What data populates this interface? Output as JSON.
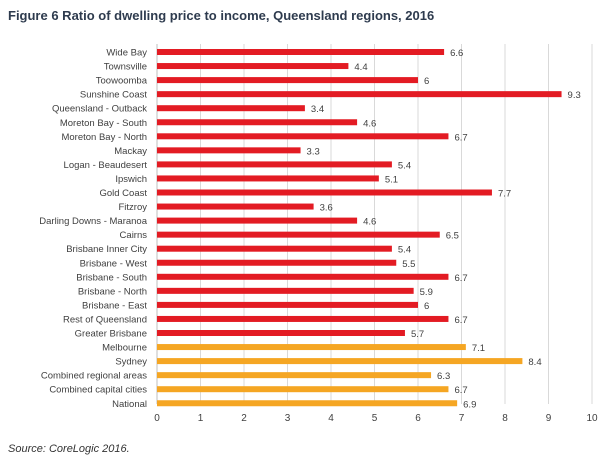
{
  "title": "Figure 6 Ratio of dwelling price to income, Queensland regions, 2016",
  "source": "Source: CoreLogic 2016.",
  "colors": {
    "queensland": "#e31b23",
    "comparison": "#f5a623",
    "grid": "#d9d9d9",
    "axis": "#bfbfbf",
    "text": "#404040"
  },
  "chart_data": {
    "type": "bar",
    "orientation": "horizontal",
    "title": "Figure 6 Ratio of dwelling price to income, Queensland regions, 2016",
    "xlabel": "",
    "ylabel": "",
    "xlim": [
      0,
      10
    ],
    "xticks": [
      "0",
      "1",
      "2",
      "3",
      "4",
      "5",
      "6",
      "7",
      "8",
      "9",
      "10"
    ],
    "grid": "vertical",
    "legend": "none",
    "categories": [
      "Wide Bay",
      "Townsville",
      "Toowoomba",
      "Sunshine Coast",
      "Queensland - Outback",
      "Moreton Bay - South",
      "Moreton Bay - North",
      "Mackay",
      "Logan - Beaudesert",
      "Ipswich",
      "Gold Coast",
      "Fitzroy",
      "Darling Downs - Maranoa",
      "Cairns",
      "Brisbane Inner City",
      "Brisbane - West",
      "Brisbane - South",
      "Brisbane - North",
      "Brisbane - East",
      "Rest of Queensland",
      "Greater Brisbane",
      "Melbourne",
      "Sydney",
      "Combined regional areas",
      "Combined capital cities",
      "National"
    ],
    "values": [
      6.6,
      4.4,
      6,
      9.3,
      3.4,
      4.6,
      6.7,
      3.3,
      5.4,
      5.1,
      7.7,
      3.6,
      4.6,
      6.5,
      5.4,
      5.5,
      6.7,
      5.9,
      6,
      6.7,
      5.7,
      7.1,
      8.4,
      6.3,
      6.7,
      6.9
    ],
    "labels": [
      "6.6",
      "4.4",
      "6",
      "9.3",
      "3.4",
      "4.6",
      "6.7",
      "3.3",
      "5.4",
      "5.1",
      "7.7",
      "3.6",
      "4.6",
      "6.5",
      "5.4",
      "5.5",
      "6.7",
      "5.9",
      "6",
      "6.7",
      "5.7",
      "7.1",
      "8.4",
      "6.3",
      "6.7",
      "6.9"
    ],
    "groups": [
      "queensland",
      "queensland",
      "queensland",
      "queensland",
      "queensland",
      "queensland",
      "queensland",
      "queensland",
      "queensland",
      "queensland",
      "queensland",
      "queensland",
      "queensland",
      "queensland",
      "queensland",
      "queensland",
      "queensland",
      "queensland",
      "queensland",
      "queensland",
      "queensland",
      "comparison",
      "comparison",
      "comparison",
      "comparison",
      "comparison"
    ]
  }
}
